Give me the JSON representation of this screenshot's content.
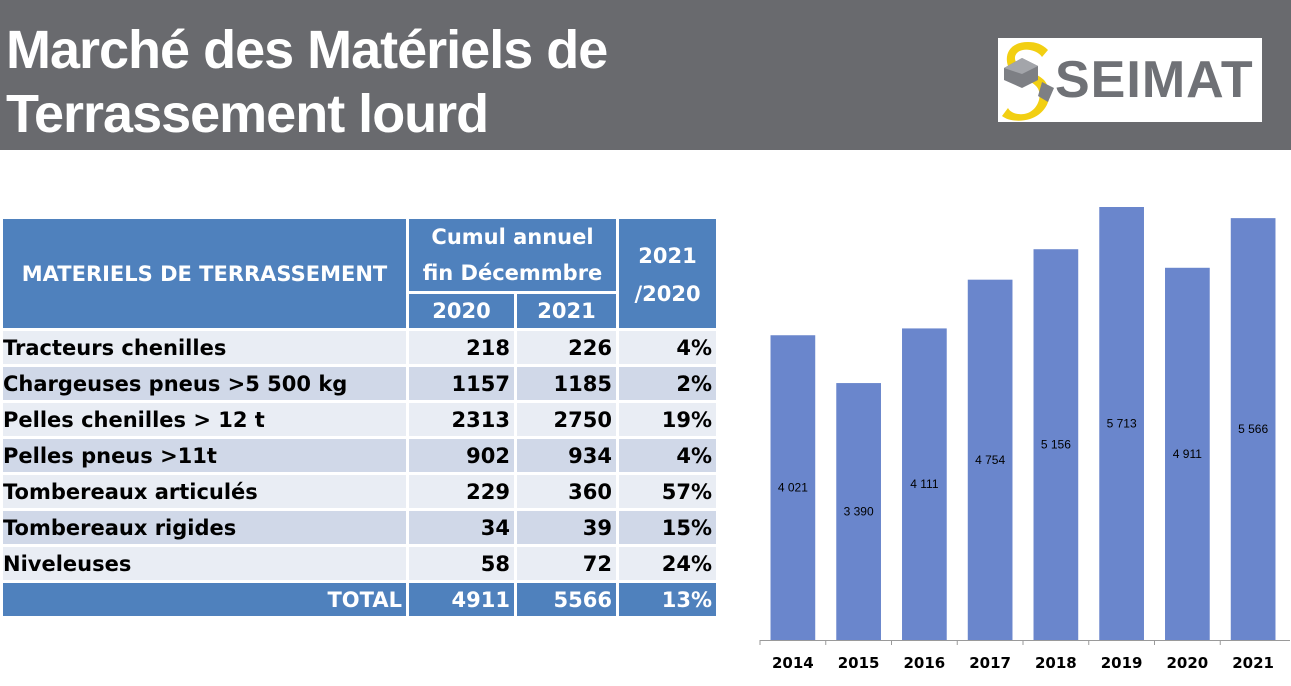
{
  "header": {
    "title_line1": "Marché des Matériels de",
    "title_line2": "Terrassement lourd",
    "logo_text": "SEIMAT"
  },
  "colors": {
    "header_bg": "#696a6e",
    "table_header": "#4f81bd",
    "row_light": "#e9edf4",
    "row_dark": "#d0d8e8",
    "bar": "#6a86cc"
  },
  "table": {
    "label_header": "MATERIELS DE TERRASSEMENT",
    "group_header_line1": "Cumul annuel",
    "group_header_line2": "fin Décemmbre",
    "year1": "2020",
    "year2": "2021",
    "ratio_header_line1": "2021",
    "ratio_header_line2": "/2020",
    "rows": [
      {
        "name": "Tracteurs chenilles",
        "v2020": "218",
        "v2021": "226",
        "change": "4%"
      },
      {
        "name": "Chargeuses pneus >5 500 kg",
        "v2020": "1157",
        "v2021": "1185",
        "change": "2%"
      },
      {
        "name": "Pelles chenilles > 12 t",
        "v2020": "2313",
        "v2021": "2750",
        "change": "19%"
      },
      {
        "name": "Pelles pneus >11t",
        "v2020": "902",
        "v2021": "934",
        "change": "4%"
      },
      {
        "name": "Tombereaux articulés",
        "v2020": "229",
        "v2021": "360",
        "change": "57%"
      },
      {
        "name": "Tombereaux rigides",
        "v2020": "34",
        "v2021": "39",
        "change": "15%"
      },
      {
        "name": "Niveleuses",
        "v2020": "58",
        "v2021": "72",
        "change": "24%"
      }
    ],
    "total": {
      "name": "TOTAL",
      "v2020": "4911",
      "v2021": "5566",
      "change": "13%"
    }
  },
  "chart_data": {
    "type": "bar",
    "categories": [
      "2014",
      "2015",
      "2016",
      "2017",
      "2018",
      "2019",
      "2020",
      "2021"
    ],
    "values": [
      4021,
      3390,
      4111,
      4754,
      5156,
      5713,
      4911,
      5566
    ],
    "value_labels": [
      "4 021",
      "3 390",
      "4 111",
      "4 754",
      "5 156",
      "5 713",
      "4 911",
      "5 566"
    ],
    "title": "",
    "xlabel": "",
    "ylabel": "",
    "ylim": [
      0,
      5713
    ],
    "grid": false,
    "legend": "none"
  }
}
